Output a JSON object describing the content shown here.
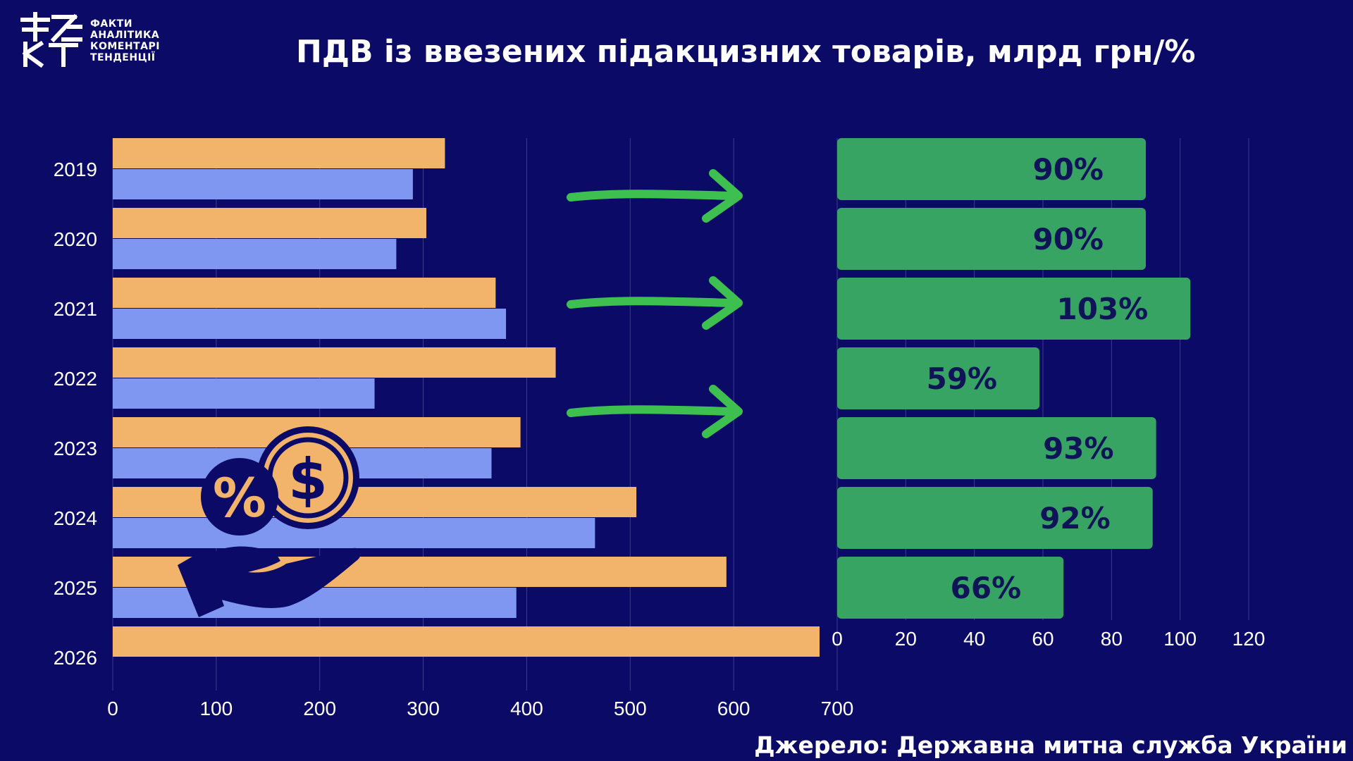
{
  "title": "ПДВ із ввезених підакцизних товарів, млрд грн/%",
  "source": "Джерело: Державна митна служба України",
  "logo": {
    "mark": "ФАКТ",
    "lines": [
      "ФАКТИ",
      "АНАЛІТИКА",
      "КОМЕНТАРІ",
      "ТЕНДЕНЦІЇ"
    ]
  },
  "colors": {
    "background": "#0b0a67",
    "orange": "#f2b46b",
    "blue": "#8097f2",
    "green": "#37a464",
    "green_arrow": "#3dc050",
    "label_dark": "#0e1457",
    "grid": "#3a3d8f"
  },
  "icons": [
    "percent-coin-icon",
    "dollar-coin-icon",
    "hand-icon",
    "arrow-right-icon"
  ],
  "chart_data": [
    {
      "type": "bar",
      "orientation": "horizontal",
      "categories": [
        "2019",
        "2020",
        "2021",
        "2022",
        "2023",
        "2024",
        "2025",
        "2026"
      ],
      "series": [
        {
          "color": "#f2b46b",
          "values": [
            321,
            303,
            370,
            428,
            394,
            506,
            593,
            683
          ]
        },
        {
          "color": "#8097f2",
          "values": [
            290,
            274,
            380,
            253,
            366,
            466,
            390,
            null
          ]
        }
      ],
      "xlim": [
        0,
        700
      ],
      "xticks": [
        0,
        100,
        200,
        300,
        400,
        500,
        600,
        700
      ],
      "grid": true
    },
    {
      "type": "bar",
      "orientation": "horizontal",
      "categories": [
        "2019",
        "2020",
        "2021",
        "2022",
        "2023",
        "2024",
        "2025"
      ],
      "values": [
        90,
        90,
        103,
        59,
        93,
        92,
        66
      ],
      "labels": [
        "90%",
        "90%",
        "103%",
        "59%",
        "93%",
        "92%",
        "66%"
      ],
      "xlim": [
        0,
        120
      ],
      "xticks": [
        0,
        20,
        40,
        60,
        80,
        100,
        120
      ],
      "grid": true
    }
  ]
}
